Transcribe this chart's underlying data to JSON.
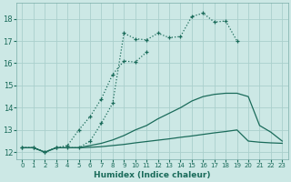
{
  "xlabel": "Humidex (Indice chaleur)",
  "background_color": "#cce8e5",
  "grid_color": "#aad0cc",
  "line_color": "#1a6b5a",
  "xlim": [
    -0.5,
    23.5
  ],
  "ylim": [
    11.7,
    18.7
  ],
  "xticks": [
    0,
    1,
    2,
    3,
    4,
    5,
    6,
    7,
    8,
    9,
    10,
    11,
    12,
    13,
    14,
    15,
    16,
    17,
    18,
    19,
    20,
    21,
    22,
    23
  ],
  "yticks": [
    12,
    13,
    14,
    15,
    16,
    17,
    18
  ],
  "line1_x": [
    0,
    1,
    2,
    3,
    4,
    5,
    6,
    7,
    8,
    9,
    10,
    11,
    12,
    13,
    14,
    15,
    16,
    17,
    18,
    19
  ],
  "line1_y": [
    12.2,
    12.2,
    12.0,
    12.2,
    12.2,
    12.2,
    12.5,
    13.3,
    14.2,
    17.35,
    17.1,
    17.05,
    17.35,
    17.15,
    17.2,
    18.1,
    18.25,
    17.85,
    17.9,
    17.0
  ],
  "line2_x": [
    0,
    1,
    2,
    3,
    4,
    5,
    6,
    7,
    8,
    9,
    10,
    11
  ],
  "line2_y": [
    12.2,
    12.2,
    12.0,
    12.2,
    12.3,
    13.0,
    13.6,
    14.4,
    15.5,
    16.1,
    16.05,
    16.5
  ],
  "line3_x": [
    0,
    1,
    2,
    3,
    4,
    5,
    6,
    7,
    8,
    9,
    10,
    11,
    12,
    13,
    14,
    15,
    16,
    17,
    18,
    19,
    20,
    21,
    22,
    23
  ],
  "line3_y": [
    12.2,
    12.2,
    12.0,
    12.2,
    12.2,
    12.2,
    12.3,
    12.4,
    12.55,
    12.75,
    13.0,
    13.2,
    13.5,
    13.75,
    14.0,
    14.3,
    14.5,
    14.6,
    14.65,
    14.65,
    14.5,
    13.2,
    12.9,
    12.5
  ],
  "line4_x": [
    0,
    1,
    2,
    3,
    4,
    5,
    6,
    7,
    8,
    9,
    10,
    11,
    12,
    13,
    14,
    15,
    16,
    17,
    18,
    19,
    20,
    21,
    22,
    23
  ],
  "line4_y": [
    12.2,
    12.2,
    12.0,
    12.2,
    12.2,
    12.2,
    12.22,
    12.25,
    12.3,
    12.35,
    12.42,
    12.48,
    12.54,
    12.6,
    12.67,
    12.73,
    12.8,
    12.87,
    12.93,
    13.0,
    12.5,
    12.45,
    12.42,
    12.4
  ]
}
